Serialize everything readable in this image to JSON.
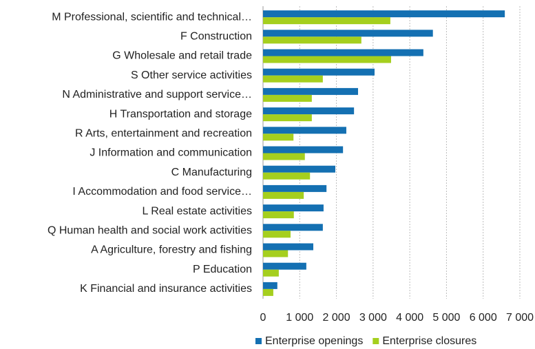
{
  "chart_data": {
    "type": "bar",
    "orientation": "horizontal",
    "categories": [
      "M Professional, scientific and technical…",
      "F Construction",
      "G Wholesale and retail trade",
      "S Other service activities",
      "N Administrative and support service…",
      "H Transportation and storage",
      "R Arts, entertainment and recreation",
      "J Information and communication",
      "C Manufacturing",
      "I Accommodation and food service…",
      "L Real estate activities",
      "Q Human health and social work activities",
      "A Agriculture, forestry and fishing",
      "P Education",
      "K Financial and insurance activities"
    ],
    "series": [
      {
        "name": "Enterprise openings",
        "color": "#1470b2",
        "values": [
          6590,
          4630,
          4370,
          3040,
          2590,
          2480,
          2270,
          2180,
          1970,
          1730,
          1650,
          1630,
          1370,
          1180,
          390
        ]
      },
      {
        "name": "Enterprise closures",
        "color": "#a5cf1e",
        "values": [
          3470,
          2680,
          3490,
          1630,
          1330,
          1330,
          830,
          1140,
          1280,
          1110,
          840,
          750,
          680,
          430,
          280
        ]
      }
    ],
    "xlim": [
      0,
      7000
    ],
    "xticks": [
      0,
      {
        "value": 1000,
        "label": "1 000"
      },
      {
        "value": 2000,
        "label": "2 000"
      },
      {
        "value": 3000,
        "label": "3 000"
      },
      {
        "value": 4000,
        "label": "4 000"
      },
      {
        "value": 5000,
        "label": "5 000"
      },
      {
        "value": 6000,
        "label": "6 000"
      },
      {
        "value": 7000,
        "label": "7 000"
      }
    ],
    "grid": true,
    "legend": "bottom"
  }
}
